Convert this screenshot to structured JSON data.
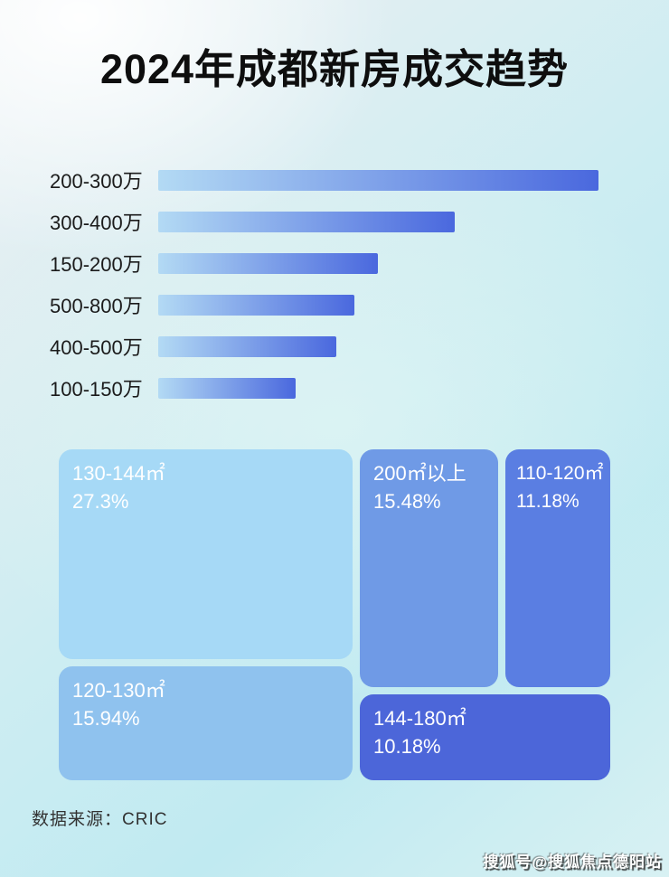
{
  "title": "2024年成都新房成交趋势",
  "source_label": "数据来源：CRIC",
  "watermark": "搜狐号@搜狐焦点德阳站",
  "colors": {
    "bar_gradient_start": "#b3daf4",
    "bar_gradient_end": "#4a68de",
    "title_text": "#0e0e0e",
    "tile_text": "#ffffff"
  },
  "chart_data": [
    {
      "type": "bar",
      "orientation": "horizontal",
      "categories": [
        "200-300万",
        "300-400万",
        "150-200万",
        "500-800万",
        "400-500万",
        "100-150万"
      ],
      "values_relative_pct": [
        100,
        67.4,
        49.9,
        44.6,
        40.5,
        31.2
      ],
      "value_labels_shown": false,
      "bar_gradient": [
        "#b3daf4",
        "#4a68de"
      ],
      "legend": "none",
      "grid": false
    },
    {
      "type": "treemap",
      "items": [
        {
          "label": "130-144㎡",
          "percent": "27.3%",
          "value": 27.3,
          "color": "#a6d9f6"
        },
        {
          "label": "200㎡以上",
          "percent": "15.48%",
          "value": 15.48,
          "color": "#6f9ae6"
        },
        {
          "label": "110-120㎡",
          "percent": "11.18%",
          "value": 11.18,
          "color": "#5a7ee2"
        },
        {
          "label": "120-130㎡",
          "percent": "15.94%",
          "value": 15.94,
          "color": "#8fc2ee"
        },
        {
          "label": "144-180㎡",
          "percent": "10.18%",
          "value": 10.18,
          "color": "#4c66d9"
        }
      ],
      "legend": "none"
    }
  ]
}
